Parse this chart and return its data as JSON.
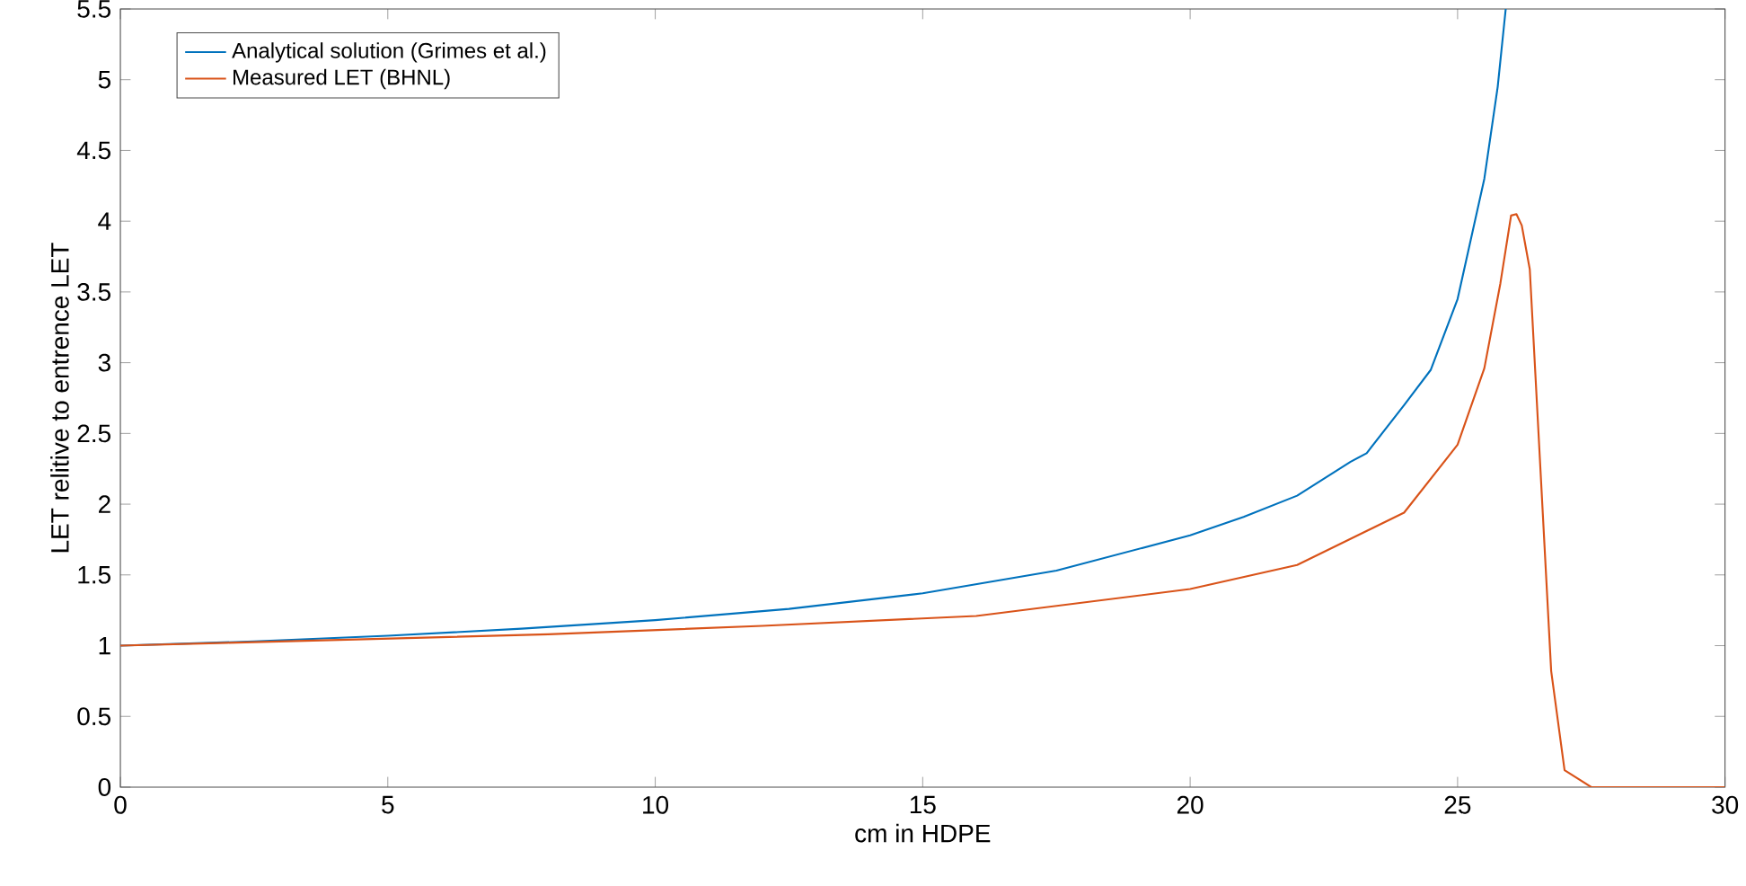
{
  "chart_data": {
    "type": "line",
    "xlabel": "cm in HDPE",
    "ylabel": "LET relitive to entrence LET",
    "xlim": [
      0,
      30
    ],
    "ylim": [
      0,
      5.5
    ],
    "xticks": [
      0,
      5,
      10,
      15,
      20,
      25,
      30
    ],
    "yticks": [
      0,
      0.5,
      1,
      1.5,
      2,
      2.5,
      3,
      3.5,
      4,
      4.5,
      5,
      5.5
    ],
    "grid": false,
    "legend": "top left",
    "marker": "none",
    "line_style": "solid",
    "series": [
      {
        "name": "Analytical solution (Grimes et al.)",
        "color": "#0072bd",
        "x": [
          0,
          2.5,
          5,
          7.5,
          10,
          12.5,
          15,
          17.5,
          20,
          21,
          22,
          23,
          23.3,
          24,
          24.5,
          25,
          25.5,
          25.75,
          25.9
        ],
        "values": [
          1.0,
          1.03,
          1.07,
          1.12,
          1.18,
          1.26,
          1.37,
          1.53,
          1.78,
          1.91,
          2.06,
          2.3,
          2.36,
          2.7,
          2.95,
          3.45,
          4.3,
          4.95,
          5.5
        ]
      },
      {
        "name": "Measured LET (BHNL)",
        "color": "#d95319",
        "x": [
          0,
          2,
          4,
          8,
          12,
          16,
          20,
          22,
          24,
          25,
          25.5,
          25.8,
          26.0,
          26.1,
          26.2,
          26.35,
          26.75,
          27.0,
          27.5,
          30
        ],
        "values": [
          1.0,
          1.02,
          1.04,
          1.08,
          1.14,
          1.21,
          1.4,
          1.57,
          1.94,
          2.42,
          2.96,
          3.56,
          4.04,
          4.05,
          3.97,
          3.66,
          0.82,
          0.12,
          0,
          0
        ]
      }
    ]
  }
}
